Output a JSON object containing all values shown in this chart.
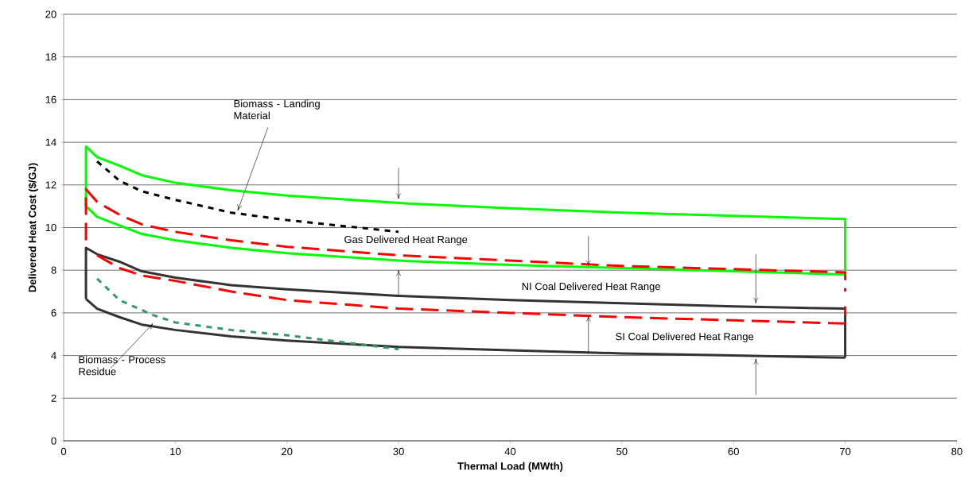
{
  "chart_data": {
    "type": "line",
    "xlabel": "Thermal Load (MWth)",
    "ylabel": "Delivered Heat Cost ($/GJ)",
    "xlim": [
      0,
      80
    ],
    "xticks": [
      0,
      10,
      20,
      30,
      40,
      50,
      60,
      70,
      80
    ],
    "ylim": [
      0,
      20
    ],
    "yticks": [
      0,
      2,
      4,
      6,
      8,
      10,
      12,
      14,
      16,
      18,
      20
    ],
    "grid": "y",
    "marker": "none",
    "series": [
      {
        "color": "#00ff00",
        "line_style": "solid",
        "x": [
          2,
          2,
          3,
          5,
          7,
          10,
          15,
          20,
          30,
          40,
          50,
          60,
          70,
          70
        ],
        "values": [
          11.0,
          13.8,
          13.3,
          12.9,
          12.45,
          12.1,
          11.75,
          11.5,
          11.15,
          10.9,
          10.7,
          10.55,
          10.4,
          7.8
        ]
      },
      {
        "color": "#00ff00",
        "line_style": "solid",
        "x": [
          2,
          3,
          5,
          7,
          10,
          15,
          20,
          30,
          40,
          50,
          60,
          70
        ],
        "values": [
          11.0,
          10.5,
          10.1,
          9.7,
          9.4,
          9.05,
          8.8,
          8.45,
          8.25,
          8.1,
          7.95,
          7.8
        ]
      },
      {
        "color": "#ff0000",
        "line_style": "dashed",
        "x": [
          2,
          2,
          3,
          5,
          7,
          10,
          15,
          20,
          30,
          40,
          50,
          60,
          70,
          70
        ],
        "values": [
          9.4,
          11.8,
          11.2,
          10.6,
          10.15,
          9.8,
          9.4,
          9.1,
          8.7,
          8.45,
          8.2,
          8.05,
          7.9,
          7.0
        ]
      },
      {
        "color": "#333333",
        "line_style": "solid",
        "x": [
          2,
          2,
          3,
          5,
          7,
          10,
          15,
          20,
          30,
          40,
          50,
          60,
          70,
          70
        ],
        "values": [
          6.65,
          9.05,
          8.75,
          8.4,
          7.95,
          7.65,
          7.3,
          7.1,
          6.8,
          6.6,
          6.45,
          6.3,
          6.2,
          3.9
        ]
      },
      {
        "color": "#333333",
        "line_style": "solid",
        "x": [
          2,
          3,
          5,
          7,
          10,
          15,
          20,
          30,
          40,
          50,
          60,
          70
        ],
        "values": [
          6.65,
          6.2,
          5.8,
          5.45,
          5.2,
          4.9,
          4.7,
          4.4,
          4.25,
          4.1,
          4.0,
          3.9
        ]
      },
      {
        "color": "#ff0000",
        "line_style": "dashed",
        "x": [
          3,
          5,
          7,
          10,
          15,
          20,
          30,
          40,
          50,
          60,
          70,
          70
        ],
        "values": [
          8.7,
          8.1,
          7.75,
          7.5,
          7.0,
          6.6,
          6.2,
          6.0,
          5.8,
          5.65,
          5.5,
          6.3
        ]
      },
      {
        "color": "#000000",
        "line_style": "dotted",
        "x": [
          3,
          5,
          7,
          10,
          15,
          20,
          30
        ],
        "values": [
          13.1,
          12.2,
          11.7,
          11.3,
          10.7,
          10.35,
          9.8
        ]
      },
      {
        "color": "#339966",
        "line_style": "dotted",
        "x": [
          3,
          5,
          8,
          10,
          15,
          20,
          30
        ],
        "values": [
          7.6,
          6.6,
          5.9,
          5.55,
          5.2,
          4.95,
          4.3
        ]
      }
    ],
    "annotations": [
      {
        "text": "Biomass - Landing Material",
        "x": 15.6,
        "y": 10.8
      },
      "Gas Delivered Heat Range",
      "NI Coal Delivered Heat Range",
      "SI Coal Delivered Heat Range",
      {
        "text": "Biomass - Process Residue",
        "x": 8,
        "y": 5.5
      }
    ]
  }
}
